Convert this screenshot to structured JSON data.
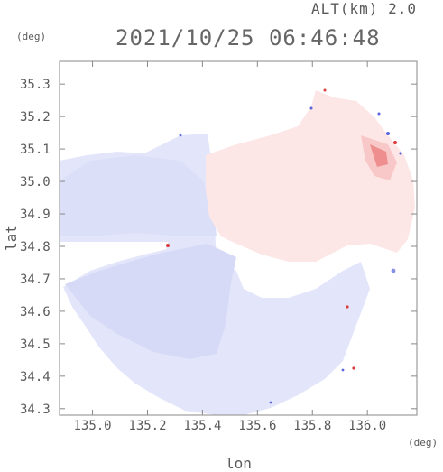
{
  "header": {
    "altitude_label": "ALT(km) 2.0",
    "timestamp": "2021/10/25 06:46:48"
  },
  "axes": {
    "x_title": "lon",
    "y_title": "lat",
    "x_unit": "(deg)",
    "y_unit": "(deg)",
    "x_ticks": [
      "135.0",
      "135.2",
      "135.4",
      "135.6",
      "135.8",
      "136.0"
    ],
    "y_ticks": [
      "35.3",
      "35.2",
      "35.1",
      "35.0",
      "34.9",
      "34.8",
      "34.7",
      "34.6",
      "34.5",
      "34.4",
      "34.3"
    ],
    "x_range": [
      134.88,
      136.18
    ],
    "y_range": [
      34.28,
      35.37
    ]
  },
  "map": {
    "field": "doppler radial velocity, radar coverage circle",
    "colors": {
      "negative_light": "#e6e8fb",
      "negative_mid": "#d2d6f5",
      "positive_light": "#fce6e6",
      "positive_strong": "#f08080",
      "edge_blue": "#5a64dc",
      "edge_red": "#dc3c3c",
      "frame": "#888888"
    }
  }
}
